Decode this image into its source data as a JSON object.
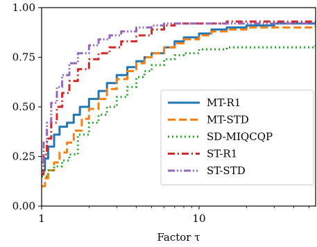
{
  "chart_data": {
    "type": "line",
    "title": "",
    "xlabel": "Factor τ",
    "ylabel": "",
    "xscale": "log",
    "xlim": [
      1,
      55
    ],
    "ylim": [
      0.0,
      1.0
    ],
    "x_ticks": [
      {
        "value": 1,
        "label": "1"
      },
      {
        "value": 10,
        "label": "10"
      }
    ],
    "y_ticks": [
      {
        "value": 0.0,
        "label": "0.00"
      },
      {
        "value": 0.25,
        "label": "0.25"
      },
      {
        "value": 0.5,
        "label": "0.50"
      },
      {
        "value": 0.75,
        "label": "0.75"
      },
      {
        "value": 1.0,
        "label": "1.00"
      }
    ],
    "grid": false,
    "legend_position": "lower-right",
    "series": [
      {
        "name": "MT-R1",
        "color": "#1f77b4",
        "dash": "solid",
        "x": [
          1,
          1.05,
          1.1,
          1.2,
          1.3,
          1.45,
          1.6,
          1.75,
          2.0,
          2.3,
          2.6,
          3.0,
          3.5,
          4.0,
          4.5,
          5.0,
          6.0,
          7.0,
          8.0,
          10.0,
          12.0,
          15.0,
          20.0,
          30.0,
          55.0
        ],
        "y": [
          0.18,
          0.24,
          0.3,
          0.36,
          0.4,
          0.42,
          0.46,
          0.5,
          0.54,
          0.58,
          0.62,
          0.66,
          0.7,
          0.73,
          0.75,
          0.77,
          0.8,
          0.83,
          0.85,
          0.87,
          0.89,
          0.9,
          0.91,
          0.92,
          0.92
        ]
      },
      {
        "name": "MT-STD",
        "color": "#ff7f0e",
        "dash": "dashed",
        "x": [
          1,
          1.05,
          1.1,
          1.2,
          1.3,
          1.45,
          1.6,
          1.8,
          2.0,
          2.3,
          2.6,
          3.0,
          3.5,
          4.0,
          4.5,
          5.0,
          6.0,
          7.0,
          8.0,
          10.0,
          12.0,
          15.0,
          20.0,
          30.0,
          55.0
        ],
        "y": [
          0.1,
          0.14,
          0.18,
          0.22,
          0.27,
          0.32,
          0.38,
          0.44,
          0.49,
          0.54,
          0.59,
          0.64,
          0.68,
          0.72,
          0.75,
          0.77,
          0.8,
          0.82,
          0.84,
          0.86,
          0.88,
          0.89,
          0.9,
          0.9,
          0.91
        ]
      },
      {
        "name": "SD-MIQCQP",
        "color": "#2ca02c",
        "dash": "dotted",
        "x": [
          1,
          1.1,
          1.2,
          1.35,
          1.5,
          1.7,
          2.0,
          2.3,
          2.6,
          3.0,
          3.5,
          4.0,
          4.5,
          5.0,
          6.0,
          7.0,
          8.0,
          10.0,
          12.0,
          15.0,
          20.0,
          30.0,
          55.0
        ],
        "y": [
          0.15,
          0.18,
          0.2,
          0.23,
          0.26,
          0.36,
          0.42,
          0.46,
          0.5,
          0.55,
          0.6,
          0.65,
          0.68,
          0.71,
          0.74,
          0.76,
          0.77,
          0.79,
          0.79,
          0.8,
          0.8,
          0.8,
          0.81
        ]
      },
      {
        "name": "ST-R1",
        "color": "#d62728",
        "dash": "dashdot",
        "x": [
          1,
          1.03,
          1.08,
          1.15,
          1.25,
          1.35,
          1.5,
          1.7,
          2.0,
          2.3,
          2.7,
          3.2,
          4.0,
          5.0,
          6.0,
          7.0,
          8.0,
          10.0,
          15.0,
          25.0,
          55.0
        ],
        "y": [
          0.16,
          0.26,
          0.34,
          0.42,
          0.5,
          0.57,
          0.63,
          0.69,
          0.74,
          0.77,
          0.8,
          0.83,
          0.86,
          0.89,
          0.91,
          0.92,
          0.92,
          0.92,
          0.93,
          0.93,
          0.93
        ]
      },
      {
        "name": "ST-STD",
        "color": "#9467bd",
        "dash": "dashdotdot",
        "x": [
          1,
          1.03,
          1.08,
          1.15,
          1.25,
          1.35,
          1.5,
          1.7,
          2.0,
          2.3,
          2.7,
          3.2,
          4.0,
          5.0,
          6.0,
          7.0,
          8.0,
          10.0,
          15.0,
          25.0,
          55.0
        ],
        "y": [
          0.22,
          0.32,
          0.42,
          0.52,
          0.6,
          0.66,
          0.72,
          0.77,
          0.81,
          0.84,
          0.86,
          0.88,
          0.9,
          0.91,
          0.92,
          0.92,
          0.92,
          0.92,
          0.92,
          0.92,
          0.92
        ]
      }
    ]
  }
}
